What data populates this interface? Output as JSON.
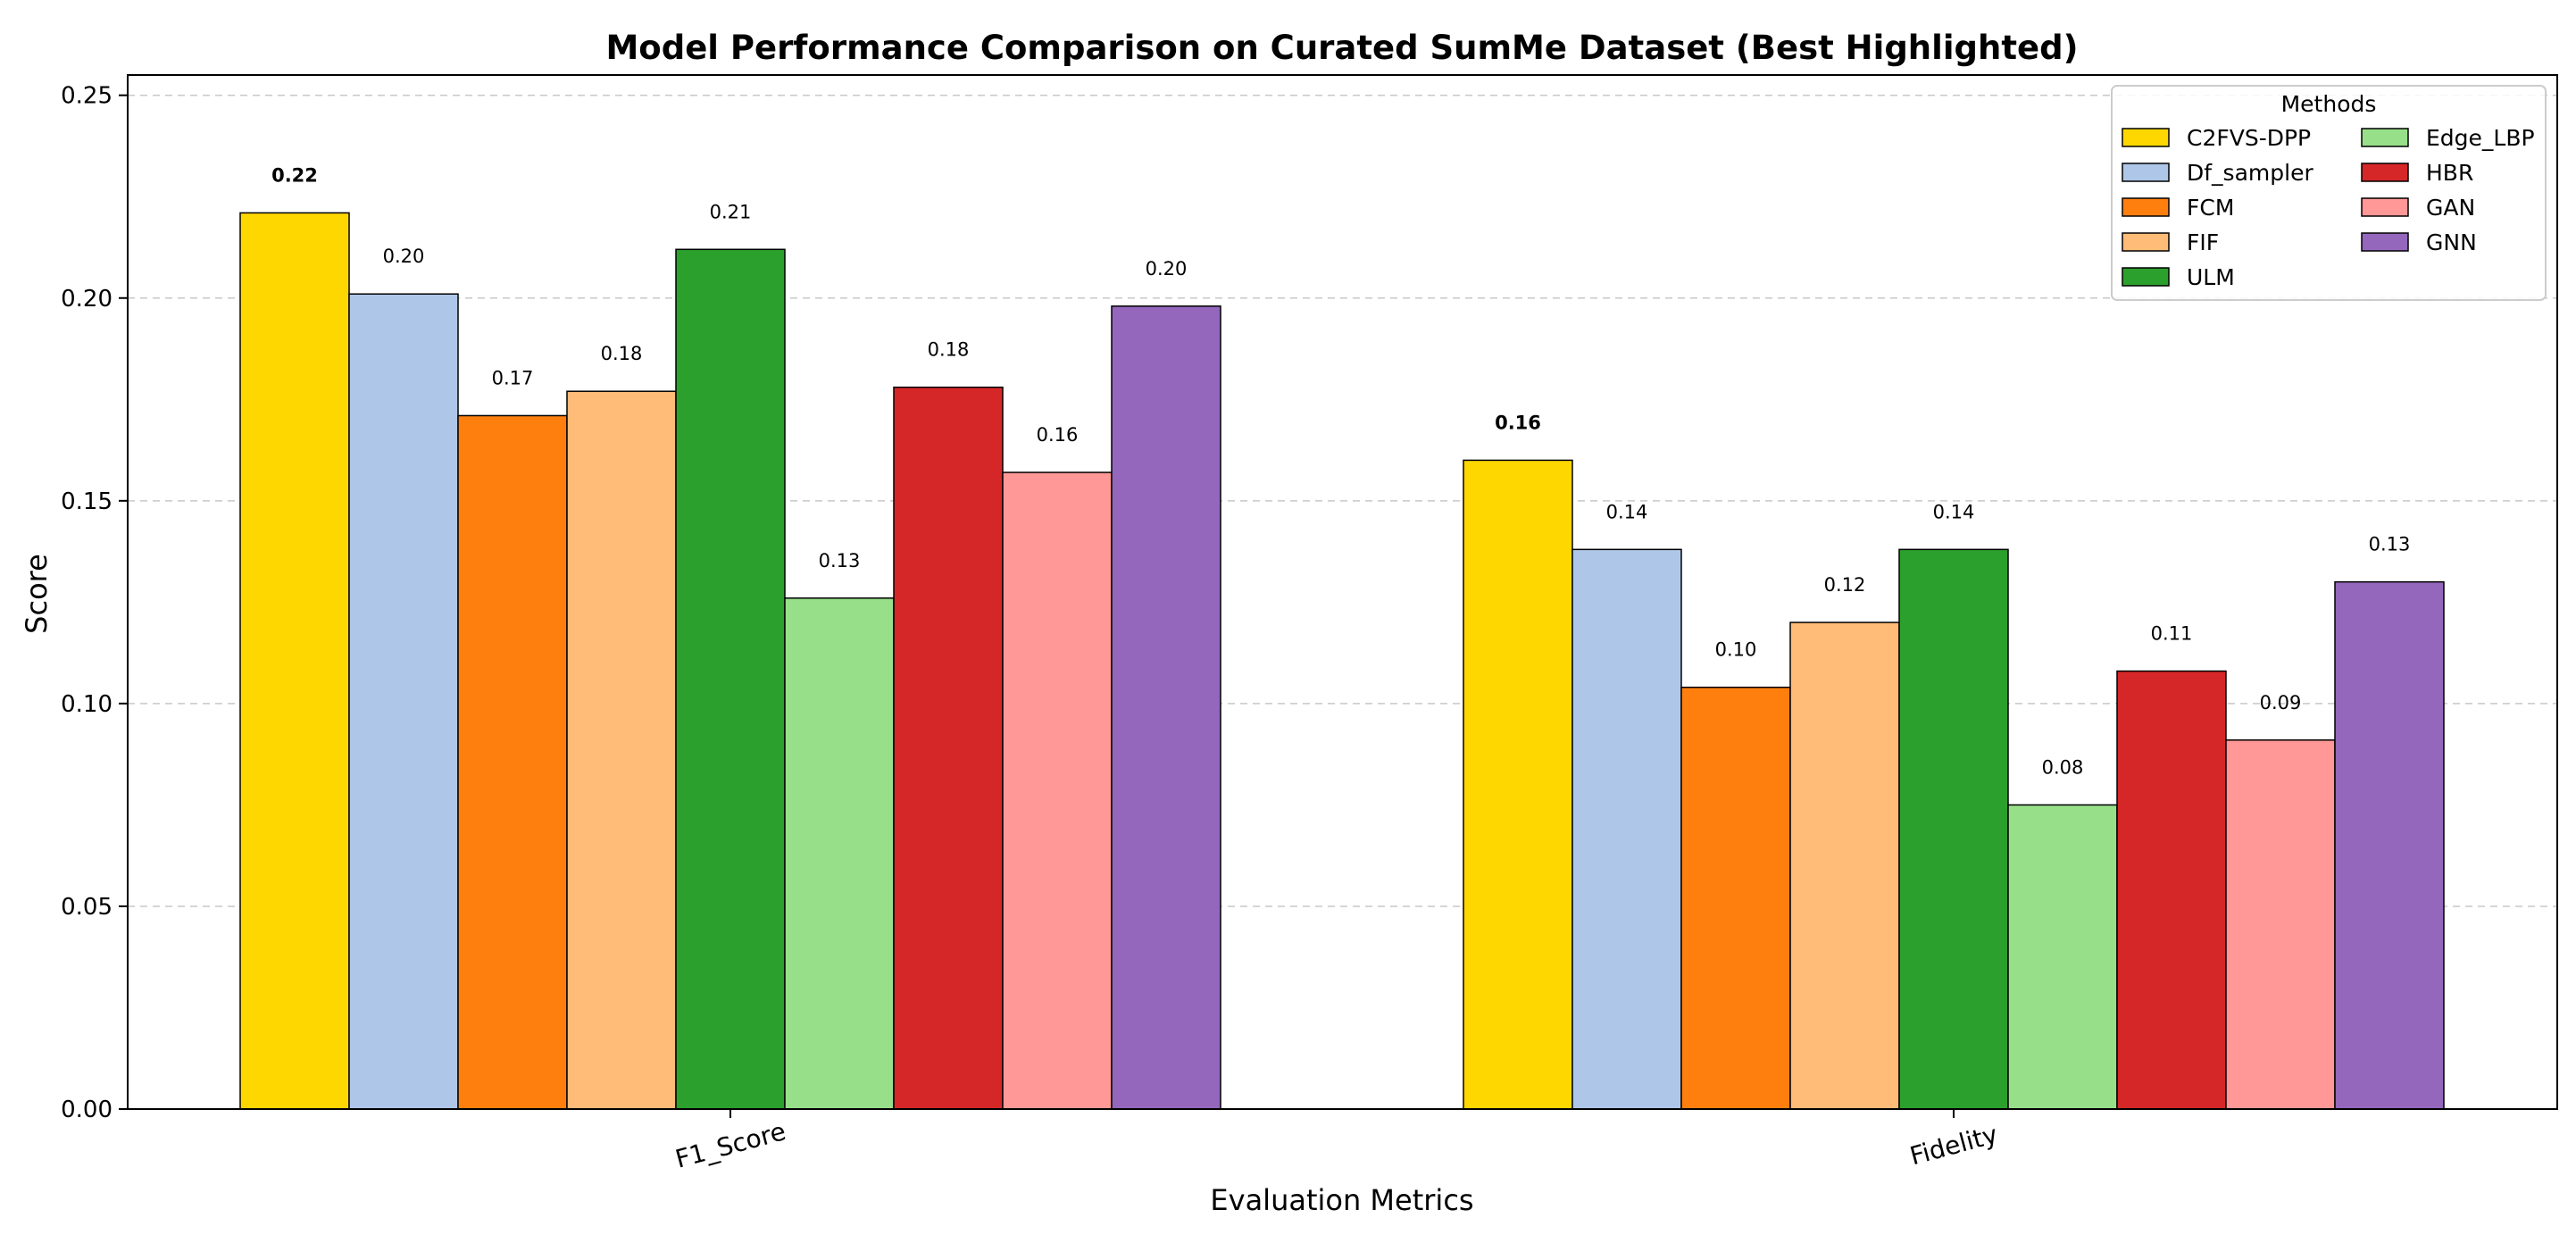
{
  "chart_data": {
    "type": "bar",
    "title": "Model Performance Comparison on Curated SumMe Dataset (Best Highlighted)",
    "xlabel": "Evaluation Metrics",
    "ylabel": "Score",
    "categories": [
      "F1_Score",
      "Fidelity"
    ],
    "ylim": [
      0,
      0.255
    ],
    "yticks": [
      0.0,
      0.05,
      0.1,
      0.15,
      0.2,
      0.25
    ],
    "ytick_labels": [
      "0.00",
      "0.05",
      "0.10",
      "0.15",
      "0.20",
      "0.25"
    ],
    "grid": "y-dashed",
    "legend": {
      "title": "Methods",
      "placement": "top-right",
      "columns": 2
    },
    "series": [
      {
        "name": "C2FVS-DPP",
        "color": "#FFD700",
        "values": [
          0.221,
          0.16
        ],
        "labels": [
          "0.22",
          "0.16"
        ],
        "best": [
          true,
          true
        ]
      },
      {
        "name": "Df_sampler",
        "color": "#AEC7E8",
        "values": [
          0.201,
          0.138
        ],
        "labels": [
          "0.20",
          "0.14"
        ],
        "best": [
          false,
          false
        ]
      },
      {
        "name": "FCM",
        "color": "#FF7F0E",
        "values": [
          0.171,
          0.104
        ],
        "labels": [
          "0.17",
          "0.10"
        ],
        "best": [
          false,
          false
        ]
      },
      {
        "name": "FIF",
        "color": "#FFBB78",
        "values": [
          0.177,
          0.12
        ],
        "labels": [
          "0.18",
          "0.12"
        ],
        "best": [
          false,
          false
        ]
      },
      {
        "name": "ULM",
        "color": "#2CA02C",
        "values": [
          0.212,
          0.138
        ],
        "labels": [
          "0.21",
          "0.14"
        ],
        "best": [
          false,
          false
        ]
      },
      {
        "name": "Edge_LBP",
        "color": "#98DF8A",
        "values": [
          0.126,
          0.075
        ],
        "labels": [
          "0.13",
          "0.08"
        ],
        "best": [
          false,
          false
        ]
      },
      {
        "name": "HBR",
        "color": "#D62728",
        "values": [
          0.178,
          0.108
        ],
        "labels": [
          "0.18",
          "0.11"
        ],
        "best": [
          false,
          false
        ]
      },
      {
        "name": "GAN",
        "color": "#FF9896",
        "values": [
          0.157,
          0.091
        ],
        "labels": [
          "0.16",
          "0.09"
        ],
        "best": [
          false,
          false
        ]
      },
      {
        "name": "GNN",
        "color": "#9467BD",
        "values": [
          0.198,
          0.13
        ],
        "labels": [
          "0.20",
          "0.13"
        ],
        "best": [
          false,
          false
        ]
      }
    ]
  }
}
